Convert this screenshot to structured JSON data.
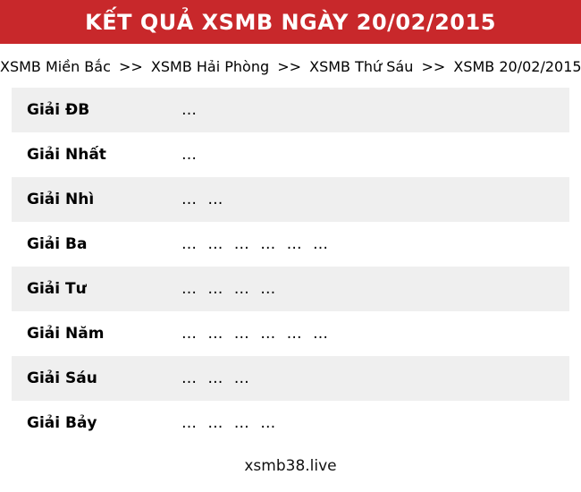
{
  "colors": {
    "header_bg": "#c8282b",
    "header_text": "#ffffff",
    "row_stripe": "#efefef"
  },
  "header": {
    "title": "KẾT QUẢ XSMB NGÀY 20/02/2015"
  },
  "breadcrumb": {
    "separator": ">>",
    "items": [
      {
        "label": "XSMB Miền Bắc"
      },
      {
        "label": "XSMB Hải Phòng"
      },
      {
        "label": "XSMB Thứ Sáu"
      },
      {
        "label": "XSMB 20/02/2015"
      }
    ]
  },
  "results_table": {
    "rows": [
      {
        "label": "Giải ĐB",
        "value": "…"
      },
      {
        "label": "Giải Nhất",
        "value": "…"
      },
      {
        "label": "Giải Nhì",
        "value": "… …"
      },
      {
        "label": "Giải Ba",
        "value": "… … … … … …"
      },
      {
        "label": "Giải Tư",
        "value": "… … … …"
      },
      {
        "label": "Giải Năm",
        "value": "… … … … … …"
      },
      {
        "label": "Giải Sáu",
        "value": "… … …"
      },
      {
        "label": "Giải Bảy",
        "value": "… … … …"
      }
    ]
  },
  "footer": {
    "site_name": "xsmb38.live"
  }
}
